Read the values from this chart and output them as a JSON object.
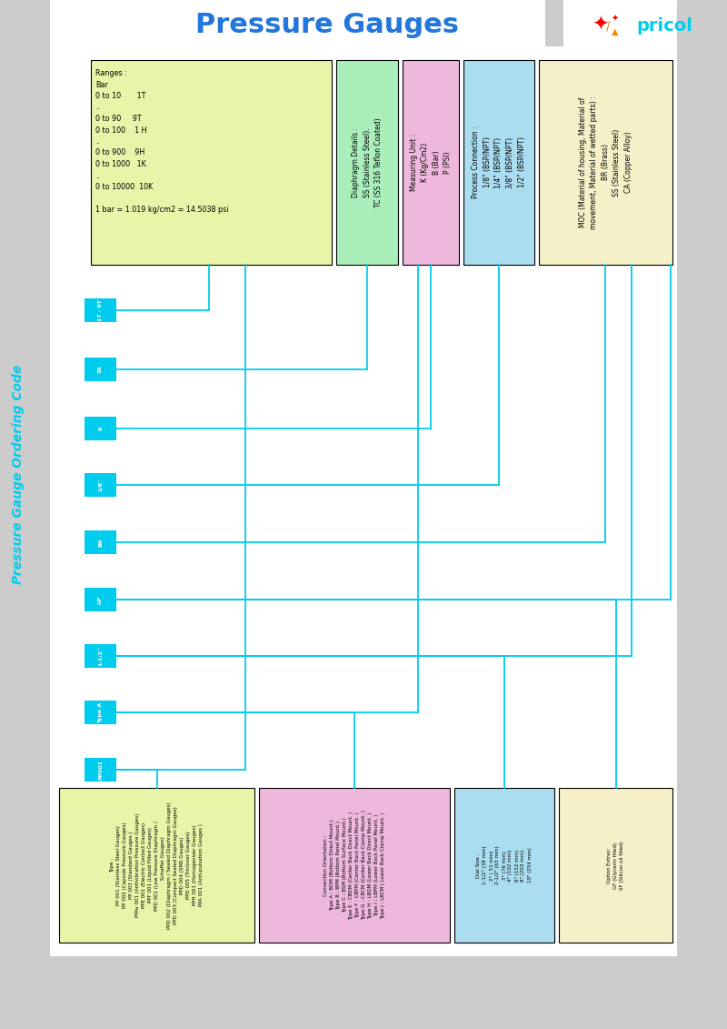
{
  "title": "Pressure Gauges",
  "title_color": "#2277DD",
  "bg_color": "#CCCCCC",
  "cyan_color": "#00CCEE",
  "box_colors": {
    "ranges": "#E8F5A8",
    "diaphragm": "#AAEEBB",
    "measuring": "#EEB8DD",
    "process": "#AADDF0",
    "moc": "#F5F0C8"
  },
  "ranges_text": "Ranges :\nBar\n0 to 10       1T\n..\n0 to 90     9T\n0 to 100    1 H\n..\n0 to 900    9H\n0 to 1000   1K\n..\n0 to 10000  10K\n\n1 bar = 1.019 kg/cm2 = 14.5038 psi",
  "diaphragm_text": "Diaphragm Details :\nSS (Stainless Steel).\nTC (SS 316 Teflon Coated)",
  "measuring_text": "Measuring Unit :\nK (Kg/Cm2)\nB (Bar)\nP (PSI)",
  "process_text": "Process Connection :\n1/8\" (BSP/NPT)\n1/4\" (BSP/NPT)\n3/8\" (BSP/NPT)\n1/2\" (BSP/NPT)",
  "moc_text": "MOC (Material of housing, Material of\nmovement, Material of wetted parts) :\nBR (Brass)\nSS (Stainless Steel)\nCA (Copper Alloy)",
  "bottom_type_text": "Type :\nPP 001 (Stainless Steel Gauges)\nPP 002 (Capsule Pressure Gauges)\nPP 003 (Standard Gauges )\nPPAv 001 (Antivibration Pressure Gauges)\nPPE 001 (Electric Contact Gauges)\nPPF 001 (Liquid Filled Gauges)\nPPD 001 (Low Pressure Diaphragm /\n         Schaffer Gauges)\nPPD 002 (Diaphragm / Sealed Diaphragm Gauges)\nPPD 003 (Compact Sealed Diaphragm Gauges)\nPPD 004 (SMS Gauges)\nPPD 005 (Triclover Gauges)\nPPH 001 (Homogenizer Gauges)\nPPA 001 (Anti-pulsation Gauges )",
  "bottom_connection_text": "Connection Orientation :\nType A : BDM (Bottom Direct Mount.)\nType B : BPM (Bottom Panel Mount.)\nType C : BSM (Bottom Surface Mount.)\nType E : CBDM (Center Back Direct Mount. )\nType F : CBPM (Center Back Panel Mount. )\nType G : CBCM (Center Back Clamp Mount. )\nType H : LBDM (Lower Back Direct Mount. )\nType I : LBPM (Lower Back Panel Mount. )\nType J : LBCM ( Lower Back Clamp Mount. )",
  "bottom_dial_text": "Dial Size :\n1-1/2\" (38 mm)\n2\" ( 51 mm)\n2-1/2\" (63 mm)\n3\" (76 mm)\n4\" (102 mm)\n6\" (152 mm)\n8\" (203 mm)\n10\" (254 mm)",
  "bottom_option_text": "Option Extras:\nGF (Glycerin filled)\nSF (Silicon oil filled)",
  "vertical_label": "Pressure Gauge Ordering Code",
  "label_blocks": [
    "1T - 9T",
    "SS",
    "K",
    "1/8\"",
    "BR",
    "GF",
    "1-1/2\"",
    "Type A",
    "PP001"
  ]
}
